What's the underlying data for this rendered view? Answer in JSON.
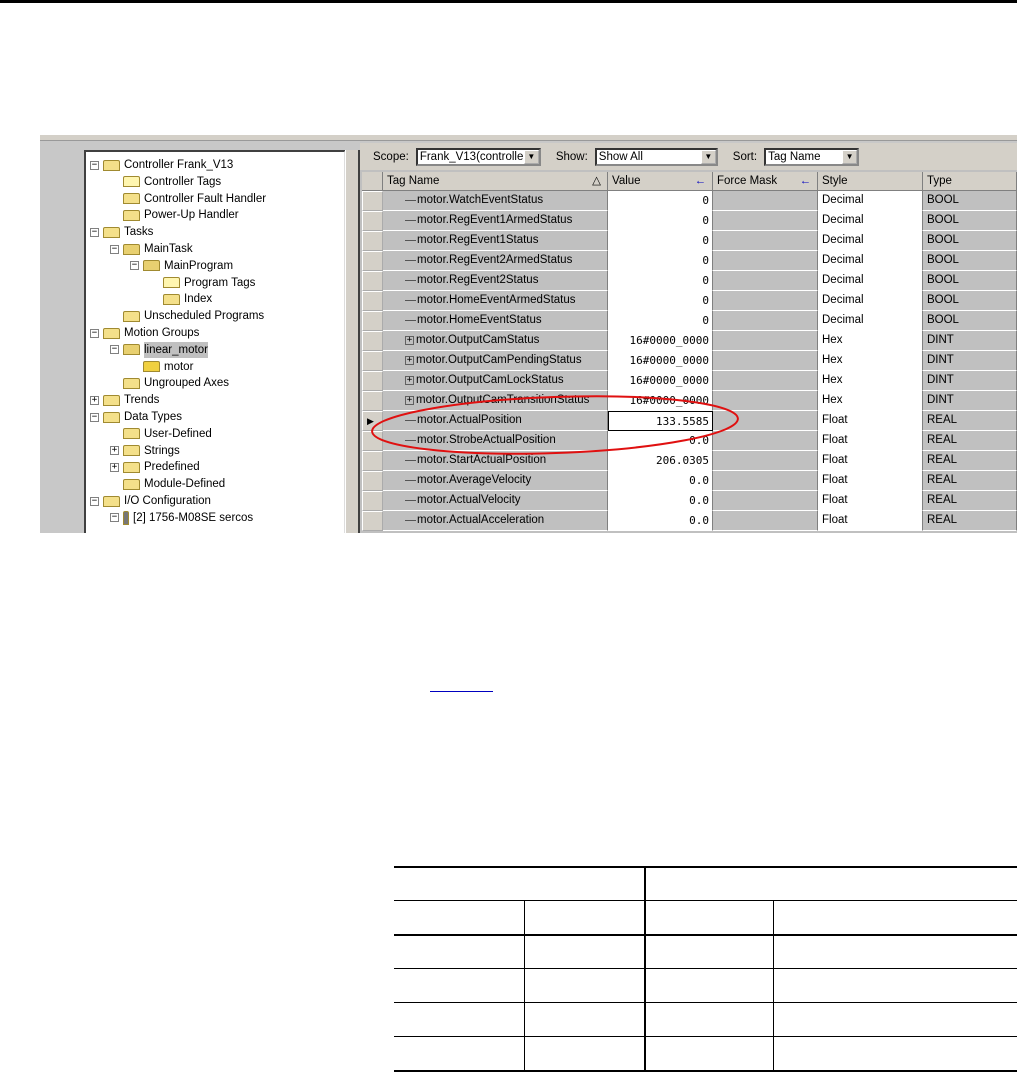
{
  "tree": [
    {
      "label": "Controller Frank_V13",
      "level": 0,
      "expander": "-",
      "icon": "folder-icon"
    },
    {
      "label": "Controller Tags",
      "level": 1,
      "icon": "tags-icon"
    },
    {
      "label": "Controller Fault Handler",
      "level": 1,
      "icon": "folder-icon"
    },
    {
      "label": "Power-Up Handler",
      "level": 1,
      "icon": "folder-icon"
    },
    {
      "label": "Tasks",
      "level": 0,
      "expander": "-",
      "icon": "folder-icon"
    },
    {
      "label": "MainTask",
      "level": 1,
      "expander": "-",
      "icon": "task-icon"
    },
    {
      "label": "MainProgram",
      "level": 2,
      "expander": "-",
      "icon": "program-icon"
    },
    {
      "label": "Program Tags",
      "level": 3,
      "icon": "tags-icon"
    },
    {
      "label": "Index",
      "level": 3,
      "icon": "routine-icon"
    },
    {
      "label": "Unscheduled Programs",
      "level": 1,
      "icon": "folder-icon"
    },
    {
      "label": "Motion Groups",
      "level": 0,
      "expander": "-",
      "icon": "folder-icon"
    },
    {
      "label": "linear_motor",
      "level": 1,
      "expander": "-",
      "icon": "motion-group-icon",
      "selected": true
    },
    {
      "label": "motor",
      "level": 2,
      "icon": "axis-icon"
    },
    {
      "label": "Ungrouped Axes",
      "level": 1,
      "icon": "folder-icon"
    },
    {
      "label": "Trends",
      "level": 0,
      "expander": "+",
      "icon": "folder-icon"
    },
    {
      "label": "Data Types",
      "level": 0,
      "expander": "-",
      "icon": "folder-icon"
    },
    {
      "label": "User-Defined",
      "level": 1,
      "icon": "datatype-folder-icon"
    },
    {
      "label": "Strings",
      "level": 1,
      "expander": "+",
      "icon": "datatype-folder-icon"
    },
    {
      "label": "Predefined",
      "level": 1,
      "expander": "+",
      "icon": "datatype-folder-icon"
    },
    {
      "label": "Module-Defined",
      "level": 1,
      "icon": "datatype-folder-icon"
    },
    {
      "label": "I/O Configuration",
      "level": 0,
      "expander": "-",
      "icon": "folder-icon"
    },
    {
      "label": "[2] 1756-M08SE sercos",
      "level": 1,
      "expander": "-",
      "icon": "module-icon"
    }
  ],
  "toolbar": {
    "scope_label": "Scope:",
    "scope_value": "Frank_V13(controlle",
    "show_label": "Show:",
    "show_value": "Show All",
    "sort_label": "Sort:",
    "sort_value": "Tag Name"
  },
  "columns": [
    "Tag Name",
    "Value",
    "Force Mask",
    "Style",
    "Type"
  ],
  "rows": [
    {
      "name": "motor.WatchEventStatus",
      "value": "0",
      "style": "Decimal",
      "type": "BOOL"
    },
    {
      "name": "motor.RegEvent1ArmedStatus",
      "value": "0",
      "style": "Decimal",
      "type": "BOOL"
    },
    {
      "name": "motor.RegEvent1Status",
      "value": "0",
      "style": "Decimal",
      "type": "BOOL"
    },
    {
      "name": "motor.RegEvent2ArmedStatus",
      "value": "0",
      "style": "Decimal",
      "type": "BOOL"
    },
    {
      "name": "motor.RegEvent2Status",
      "value": "0",
      "style": "Decimal",
      "type": "BOOL"
    },
    {
      "name": "motor.HomeEventArmedStatus",
      "value": "0",
      "style": "Decimal",
      "type": "BOOL"
    },
    {
      "name": "motor.HomeEventStatus",
      "value": "0",
      "style": "Decimal",
      "type": "BOOL"
    },
    {
      "name": "motor.OutputCamStatus",
      "value": "16#0000_0000",
      "style": "Hex",
      "type": "DINT",
      "expandable": true
    },
    {
      "name": "motor.OutputCamPendingStatus",
      "value": "16#0000_0000",
      "style": "Hex",
      "type": "DINT",
      "expandable": true
    },
    {
      "name": "motor.OutputCamLockStatus",
      "value": "16#0000_0000",
      "style": "Hex",
      "type": "DINT",
      "expandable": true
    },
    {
      "name": "motor.OutputCamTransitionStatus",
      "value": "16#0000_0000",
      "style": "Hex",
      "type": "DINT",
      "expandable": true
    },
    {
      "name": "motor.ActualPosition",
      "value": "133.5585",
      "style": "Float",
      "type": "REAL",
      "current": true
    },
    {
      "name": "motor.StrobeActualPosition",
      "value": "0.0",
      "style": "Float",
      "type": "REAL"
    },
    {
      "name": "motor.StartActualPosition",
      "value": "206.0305",
      "style": "Float",
      "type": "REAL"
    },
    {
      "name": "motor.AverageVelocity",
      "value": "0.0",
      "style": "Float",
      "type": "REAL"
    },
    {
      "name": "motor.ActualVelocity",
      "value": "0.0",
      "style": "Float",
      "type": "REAL"
    },
    {
      "name": "motor.ActualAcceleration",
      "value": "0.0",
      "style": "Float",
      "type": "REAL"
    }
  ],
  "colors": {
    "highlight_ellipse": "#e01010",
    "link": "#0000c0"
  }
}
